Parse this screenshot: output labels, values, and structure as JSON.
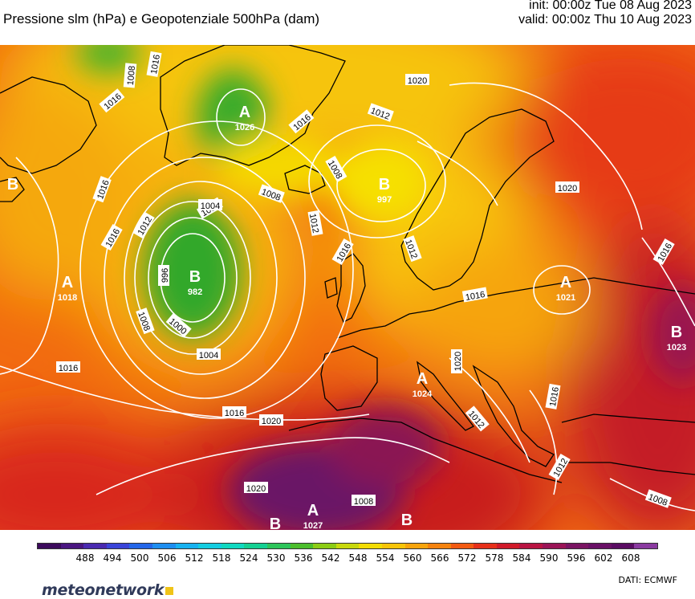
{
  "header": {
    "title": "Pressione slm (hPa) e Geopotenziale 500hPa (dam)",
    "init": "init: 00:00z Tue 08 Aug 2023",
    "valid": "valid: 00:00z Thu 10 Aug 2023"
  },
  "map": {
    "isobar_labels": [
      "1020",
      "1012",
      "1008",
      "1004",
      "1016",
      "1016",
      "1016",
      "1012",
      "1016",
      "1012",
      "1008",
      "1004",
      "996",
      "1000",
      "1008",
      "1004",
      "1016",
      "1016",
      "1020",
      "1020",
      "1020",
      "1016",
      "1016",
      "1012",
      "1012",
      "1008",
      "1020",
      "1016",
      "1012",
      "1008",
      "1008",
      "1016",
      "1016"
    ],
    "pressure_centers": [
      {
        "letter": "A",
        "value": "1026"
      },
      {
        "letter": "B",
        "value": "997"
      },
      {
        "letter": "B",
        "value": "982"
      },
      {
        "letter": "A",
        "value": "1018"
      },
      {
        "letter": "A",
        "value": "1021"
      },
      {
        "letter": "A",
        "value": "1024"
      },
      {
        "letter": "B",
        "value": "1023"
      },
      {
        "letter": "A",
        "value": "1027"
      },
      {
        "letter": "B",
        "value": ""
      },
      {
        "letter": "B",
        "value": ""
      },
      {
        "letter": "B",
        "value": ""
      }
    ],
    "colors": {
      "geopotential_low": "#2fa12a",
      "geopotential_mid": "#f5d400",
      "geopotential_high": "#e8320f",
      "geopotential_max": "#7a1a6a",
      "isobar": "#ffffff",
      "coastline": "#000000"
    }
  },
  "legend": {
    "ticks": [
      "488",
      "494",
      "500",
      "506",
      "512",
      "518",
      "524",
      "530",
      "536",
      "542",
      "548",
      "554",
      "560",
      "566",
      "572",
      "578",
      "584",
      "590",
      "596",
      "602",
      "608"
    ],
    "colors": [
      "#3c0a5c",
      "#4a1680",
      "#4a2ab0",
      "#3a44d8",
      "#2466e8",
      "#1e8ef0",
      "#18b2f0",
      "#14cce0",
      "#10d8c0",
      "#14d092",
      "#2cc45a",
      "#4cbe2c",
      "#8ccc14",
      "#c8d80c",
      "#f2dc04",
      "#f8c408",
      "#f8a40c",
      "#f5820e",
      "#f25a12",
      "#e6301a",
      "#d01a2a",
      "#b81442",
      "#9a1456",
      "#7a1462",
      "#6a1066",
      "#5a0c62",
      "#8a3aa0"
    ]
  },
  "footer": {
    "brand": "meteonetwork",
    "source": "DATI:  ECMWF"
  }
}
